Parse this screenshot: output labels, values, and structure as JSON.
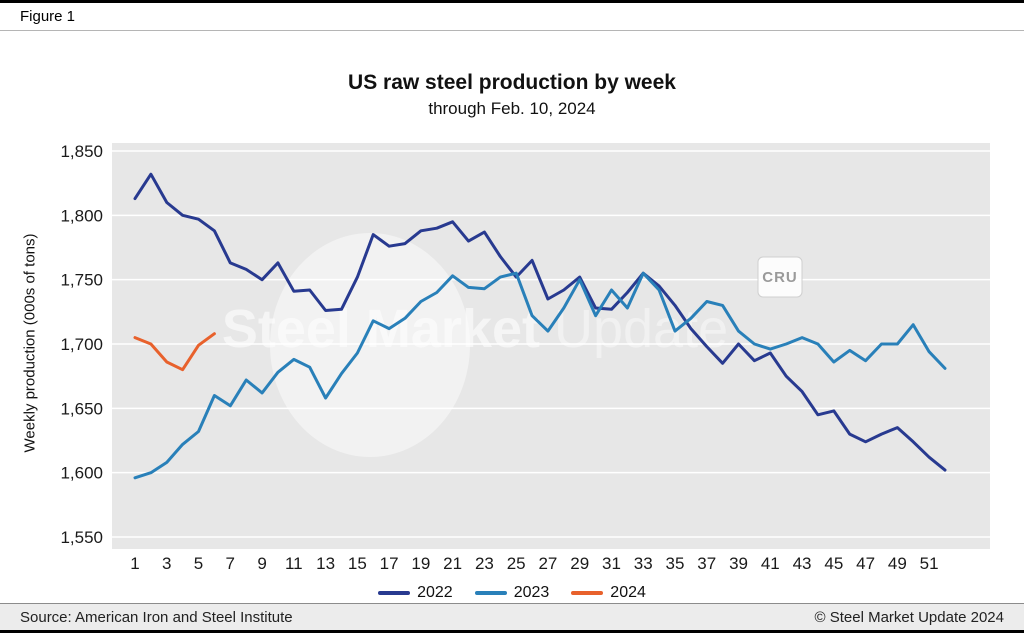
{
  "figure_label": "Figure 1",
  "title": "US raw steel production by week",
  "subtitle": "through Feb. 10, 2024",
  "watermark": {
    "steel_market": "Steel Market",
    "update": "Update",
    "cru": "CRU"
  },
  "footer": {
    "source": "Source: American Iron and Steel Institute",
    "copyright": "© Steel Market Update 2024"
  },
  "chart_data": {
    "type": "line",
    "x": [
      1,
      2,
      3,
      4,
      5,
      6,
      7,
      8,
      9,
      10,
      11,
      12,
      13,
      14,
      15,
      16,
      17,
      18,
      19,
      20,
      21,
      22,
      23,
      24,
      25,
      26,
      27,
      28,
      29,
      30,
      31,
      32,
      33,
      34,
      35,
      36,
      37,
      38,
      39,
      40,
      41,
      42,
      43,
      44,
      45,
      46,
      47,
      48,
      49,
      50,
      51,
      52
    ],
    "xticks": [
      1,
      3,
      5,
      7,
      9,
      11,
      13,
      15,
      17,
      19,
      21,
      23,
      25,
      27,
      29,
      31,
      33,
      35,
      37,
      39,
      41,
      43,
      45,
      47,
      49,
      51
    ],
    "ylabel": "Weekly production (000s of tons)",
    "ylim": [
      1550,
      1850
    ],
    "yticks": [
      1550,
      1600,
      1650,
      1700,
      1750,
      1800,
      1850
    ],
    "grid": true,
    "legend_position": "bottom",
    "series": [
      {
        "name": "2022",
        "color": "#283a90",
        "values": [
          1813,
          1832,
          1810,
          1800,
          1797,
          1788,
          1763,
          1758,
          1750,
          1763,
          1741,
          1742,
          1726,
          1727,
          1752,
          1785,
          1776,
          1778,
          1788,
          1790,
          1795,
          1780,
          1787,
          1768,
          1752,
          1765,
          1735,
          1742,
          1752,
          1728,
          1727,
          1740,
          1755,
          1745,
          1730,
          1712,
          1698,
          1685,
          1700,
          1687,
          1693,
          1675,
          1663,
          1645,
          1648,
          1630,
          1624,
          1630,
          1635,
          1624,
          1612,
          1602
        ]
      },
      {
        "name": "2023",
        "color": "#2980b9",
        "values": [
          1596,
          1600,
          1608,
          1622,
          1632,
          1660,
          1652,
          1672,
          1662,
          1678,
          1688,
          1682,
          1658,
          1677,
          1693,
          1718,
          1712,
          1720,
          1733,
          1740,
          1753,
          1744,
          1743,
          1752,
          1755,
          1722,
          1710,
          1728,
          1750,
          1722,
          1742,
          1728,
          1755,
          1742,
          1710,
          1720,
          1733,
          1730,
          1710,
          1700,
          1696,
          1700,
          1705,
          1700,
          1686,
          1695,
          1687,
          1700,
          1700,
          1715,
          1694,
          1681
        ]
      },
      {
        "name": "2024",
        "color": "#e8612c",
        "values": [
          1705,
          1700,
          1686,
          1680,
          1699,
          1708
        ]
      }
    ]
  }
}
